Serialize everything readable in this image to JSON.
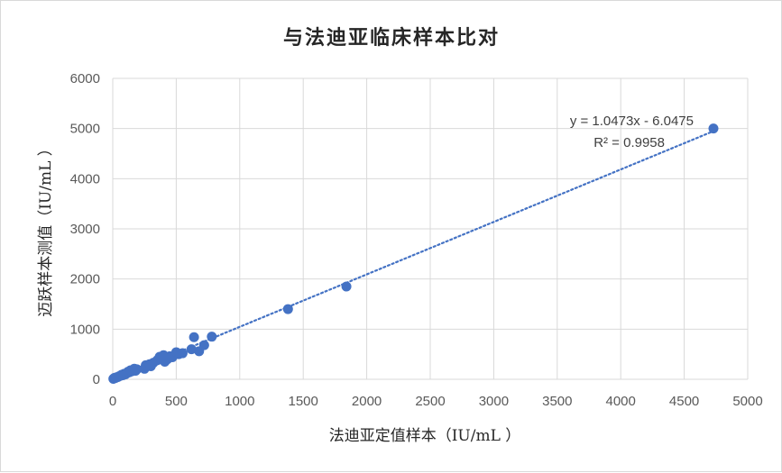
{
  "chart_data": {
    "type": "scatter",
    "title": "与法迪亚临床样本比对",
    "xlabel": "法迪亚定值样本（IU/mL ）",
    "ylabel": "迈跃样本测值（IU/mL ）",
    "xlim": [
      0,
      5000
    ],
    "ylim": [
      0,
      6000
    ],
    "xticks": [
      0,
      500,
      1000,
      1500,
      2000,
      2500,
      3000,
      3500,
      4000,
      4500,
      5000
    ],
    "yticks": [
      0,
      1000,
      2000,
      3000,
      4000,
      5000,
      6000
    ],
    "xtick_labels": [
      "0",
      "500",
      "1000",
      "1500",
      "2000",
      "2500",
      "3000",
      "3500",
      "4000",
      "4500",
      "5000"
    ],
    "ytick_labels": [
      "0",
      "1000",
      "2000",
      "3000",
      "4000",
      "5000",
      "6000"
    ],
    "grid": true,
    "marker_color": "#4472c4",
    "points": [
      [
        5,
        10
      ],
      [
        10,
        20
      ],
      [
        15,
        30
      ],
      [
        20,
        25
      ],
      [
        30,
        40
      ],
      [
        40,
        45
      ],
      [
        50,
        60
      ],
      [
        60,
        70
      ],
      [
        70,
        90
      ],
      [
        80,
        80
      ],
      [
        90,
        110
      ],
      [
        100,
        100
      ],
      [
        110,
        120
      ],
      [
        120,
        150
      ],
      [
        130,
        140
      ],
      [
        140,
        180
      ],
      [
        150,
        160
      ],
      [
        160,
        190
      ],
      [
        170,
        210
      ],
      [
        180,
        170
      ],
      [
        190,
        200
      ],
      [
        250,
        210
      ],
      [
        260,
        280
      ],
      [
        290,
        300
      ],
      [
        300,
        260
      ],
      [
        320,
        330
      ],
      [
        350,
        380
      ],
      [
        370,
        450
      ],
      [
        390,
        420
      ],
      [
        400,
        480
      ],
      [
        410,
        350
      ],
      [
        430,
        400
      ],
      [
        450,
        460
      ],
      [
        470,
        440
      ],
      [
        500,
        540
      ],
      [
        520,
        500
      ],
      [
        550,
        520
      ],
      [
        620,
        600
      ],
      [
        640,
        840
      ],
      [
        680,
        560
      ],
      [
        720,
        680
      ],
      [
        780,
        850
      ],
      [
        1380,
        1400
      ],
      [
        1840,
        1850
      ],
      [
        4730,
        5000
      ]
    ],
    "trendline": {
      "slope": 1.0473,
      "intercept": -6.0475,
      "x_range": [
        0,
        4730
      ],
      "equation": "y = 1.0473x - 6.0475",
      "r2": "R² = 0.9958"
    }
  }
}
